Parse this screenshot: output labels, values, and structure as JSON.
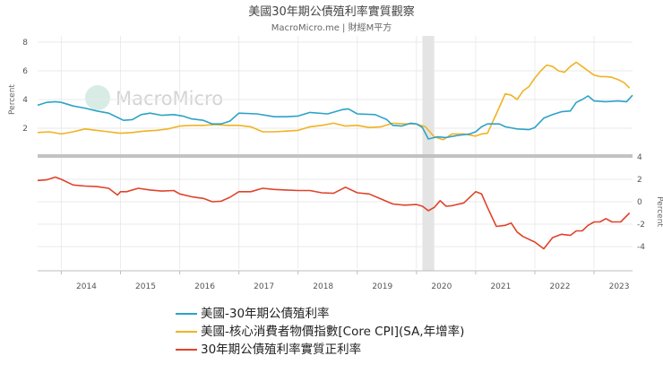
{
  "chart_data": [
    {
      "type": "line",
      "title": "美國30年期公債殖利率實質觀察",
      "subtitle": "MacroMicro.me | 財經M平方",
      "watermark": "MacroMicro",
      "ylabel": "Percent",
      "ylim": [
        0,
        8
      ],
      "yticks": [
        2,
        4,
        6,
        8
      ],
      "xlim": [
        2013.6,
        2023.65
      ],
      "xticks": [
        "2014",
        "2015",
        "2016",
        "2017",
        "2018",
        "2019",
        "2020",
        "2021",
        "2022",
        "2023"
      ],
      "shaded_period": [
        2020.1,
        2020.3
      ],
      "series": [
        {
          "name": "美國-30年期公債殖利率",
          "color": "#2da3c7",
          "x": [
            2013.6,
            2013.75,
            2013.9,
            2014.0,
            2014.2,
            2014.4,
            2014.6,
            2014.8,
            2014.95,
            2015.05,
            2015.2,
            2015.35,
            2015.5,
            2015.7,
            2015.9,
            2016.05,
            2016.2,
            2016.4,
            2016.55,
            2016.7,
            2016.85,
            2017.0,
            2017.3,
            2017.6,
            2017.8,
            2018.0,
            2018.2,
            2018.5,
            2018.75,
            2018.85,
            2019.0,
            2019.3,
            2019.5,
            2019.6,
            2019.75,
            2019.9,
            2020.0,
            2020.1,
            2020.2,
            2020.35,
            2020.5,
            2020.7,
            2020.9,
            2021.0,
            2021.1,
            2021.2,
            2021.4,
            2021.5,
            2021.7,
            2021.9,
            2022.0,
            2022.15,
            2022.3,
            2022.45,
            2022.6,
            2022.7,
            2022.8,
            2022.9,
            2023.0,
            2023.2,
            2023.4,
            2023.55,
            2023.65
          ],
          "values": [
            3.6,
            3.8,
            3.85,
            3.8,
            3.55,
            3.4,
            3.2,
            3.05,
            2.75,
            2.55,
            2.6,
            2.95,
            3.05,
            2.9,
            2.95,
            2.85,
            2.65,
            2.55,
            2.3,
            2.3,
            2.5,
            3.05,
            3.0,
            2.8,
            2.8,
            2.85,
            3.1,
            3.0,
            3.3,
            3.35,
            3.0,
            2.95,
            2.6,
            2.2,
            2.15,
            2.35,
            2.3,
            2.05,
            1.25,
            1.4,
            1.35,
            1.5,
            1.6,
            1.75,
            2.1,
            2.3,
            2.3,
            2.1,
            1.95,
            1.9,
            2.05,
            2.7,
            2.95,
            3.15,
            3.2,
            3.8,
            4.0,
            4.25,
            3.9,
            3.85,
            3.9,
            3.85,
            4.3
          ]
        },
        {
          "name": "美國-核心消費者物價指數[Core CPI](SA,年增率)",
          "color": "#f0b323",
          "x": [
            2013.6,
            2013.8,
            2014.0,
            2014.2,
            2014.4,
            2014.6,
            2014.8,
            2015.0,
            2015.2,
            2015.4,
            2015.6,
            2015.8,
            2016.0,
            2016.2,
            2016.4,
            2016.6,
            2016.8,
            2017.0,
            2017.2,
            2017.4,
            2017.6,
            2017.8,
            2018.0,
            2018.2,
            2018.4,
            2018.6,
            2018.8,
            2019.0,
            2019.2,
            2019.4,
            2019.6,
            2019.8,
            2020.0,
            2020.15,
            2020.3,
            2020.45,
            2020.6,
            2020.8,
            2021.0,
            2021.1,
            2021.2,
            2021.35,
            2021.5,
            2021.6,
            2021.7,
            2021.8,
            2021.9,
            2022.0,
            2022.1,
            2022.2,
            2022.3,
            2022.4,
            2022.5,
            2022.6,
            2022.7,
            2022.8,
            2022.9,
            2023.0,
            2023.1,
            2023.2,
            2023.3,
            2023.4,
            2023.5,
            2023.6
          ],
          "values": [
            1.7,
            1.75,
            1.6,
            1.75,
            1.95,
            1.85,
            1.75,
            1.65,
            1.7,
            1.8,
            1.85,
            1.95,
            2.15,
            2.2,
            2.2,
            2.25,
            2.2,
            2.2,
            2.1,
            1.75,
            1.75,
            1.8,
            1.85,
            2.1,
            2.2,
            2.35,
            2.15,
            2.2,
            2.05,
            2.1,
            2.35,
            2.3,
            2.3,
            2.1,
            1.4,
            1.2,
            1.6,
            1.6,
            1.45,
            1.6,
            1.65,
            3.0,
            4.4,
            4.3,
            4.0,
            4.6,
            4.9,
            5.5,
            6.0,
            6.4,
            6.3,
            6.0,
            5.9,
            6.3,
            6.6,
            6.3,
            6.0,
            5.7,
            5.6,
            5.6,
            5.55,
            5.4,
            5.2,
            4.8
          ]
        }
      ]
    },
    {
      "type": "line",
      "ylabel": "Percent",
      "ylim": [
        -6,
        4
      ],
      "yticks": [
        4,
        2,
        0,
        -2,
        -4
      ],
      "series": [
        {
          "name": "30年期公債殖利率實質正利率",
          "color": "#e0432b",
          "x": [
            2013.6,
            2013.75,
            2013.9,
            2014.0,
            2014.2,
            2014.4,
            2014.6,
            2014.8,
            2014.95,
            2015.0,
            2015.1,
            2015.3,
            2015.5,
            2015.7,
            2015.9,
            2016.0,
            2016.2,
            2016.4,
            2016.55,
            2016.7,
            2016.85,
            2017.0,
            2017.2,
            2017.4,
            2017.6,
            2017.8,
            2018.0,
            2018.2,
            2018.4,
            2018.6,
            2018.8,
            2019.0,
            2019.2,
            2019.4,
            2019.6,
            2019.8,
            2020.0,
            2020.1,
            2020.2,
            2020.3,
            2020.4,
            2020.5,
            2020.6,
            2020.8,
            2021.0,
            2021.1,
            2021.2,
            2021.35,
            2021.5,
            2021.6,
            2021.7,
            2021.8,
            2022.0,
            2022.15,
            2022.3,
            2022.45,
            2022.6,
            2022.7,
            2022.8,
            2022.9,
            2023.0,
            2023.1,
            2023.2,
            2023.3,
            2023.45,
            2023.6
          ],
          "values": [
            1.9,
            1.95,
            2.2,
            2.0,
            1.5,
            1.4,
            1.35,
            1.2,
            0.6,
            0.9,
            0.9,
            1.2,
            1.05,
            0.95,
            1.0,
            0.7,
            0.45,
            0.3,
            0.0,
            0.05,
            0.4,
            0.9,
            0.9,
            1.2,
            1.1,
            1.05,
            1.0,
            1.0,
            0.8,
            0.75,
            1.3,
            0.8,
            0.7,
            0.25,
            -0.2,
            -0.3,
            -0.25,
            -0.4,
            -0.8,
            -0.5,
            0.1,
            -0.4,
            -0.35,
            -0.1,
            0.9,
            0.7,
            -0.5,
            -2.2,
            -2.1,
            -1.9,
            -2.7,
            -3.1,
            -3.6,
            -4.2,
            -3.2,
            -2.9,
            -3.0,
            -2.6,
            -2.6,
            -2.1,
            -1.8,
            -1.8,
            -1.5,
            -1.8,
            -1.8,
            -1.0
          ]
        }
      ]
    }
  ]
}
